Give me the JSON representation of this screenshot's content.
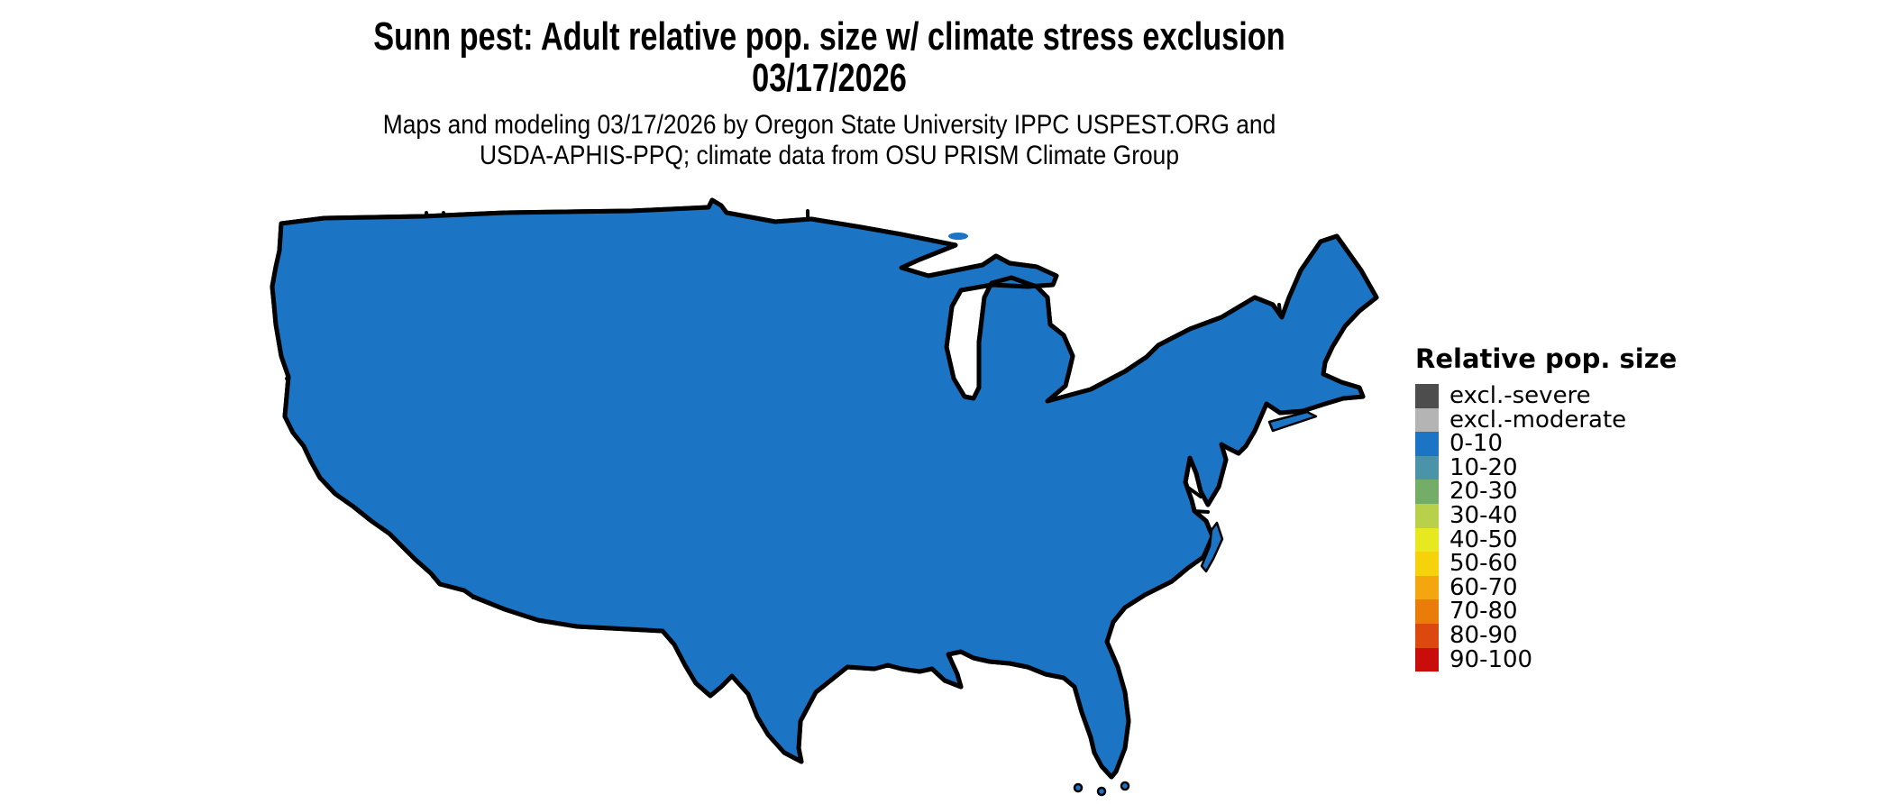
{
  "title": {
    "line1": "Sunn pest: Adult relative pop. size w/ climate stress exclusion",
    "line2": "03/17/2026"
  },
  "subtitle": {
    "line1": "Maps and modeling 03/17/2026 by Oregon State University IPPC USPEST.ORG and",
    "line2": "USDA-APHIS-PPQ; climate data from OSU PRISM Climate Group"
  },
  "legend": {
    "title": "Relative pop. size",
    "items": [
      {
        "label": "excl.-severe",
        "color": "#4d4d4d"
      },
      {
        "label": "excl.-moderate",
        "color": "#b4b4b4"
      },
      {
        "label": "0-10",
        "color": "#1b75c4"
      },
      {
        "label": "10-20",
        "color": "#4a93a8"
      },
      {
        "label": "20-30",
        "color": "#74ad68"
      },
      {
        "label": "30-40",
        "color": "#b8d04a"
      },
      {
        "label": "40-50",
        "color": "#e6e820"
      },
      {
        "label": "50-60",
        "color": "#f6d20a"
      },
      {
        "label": "60-70",
        "color": "#f3a60e"
      },
      {
        "label": "70-80",
        "color": "#ea7d0a"
      },
      {
        "label": "80-90",
        "color": "#db490e"
      },
      {
        "label": "90-100",
        "color": "#c90d0b"
      }
    ]
  },
  "map": {
    "type": "us-choropleth",
    "background": "#ffffff",
    "border_color": "#000000",
    "base_category": "0-10"
  }
}
